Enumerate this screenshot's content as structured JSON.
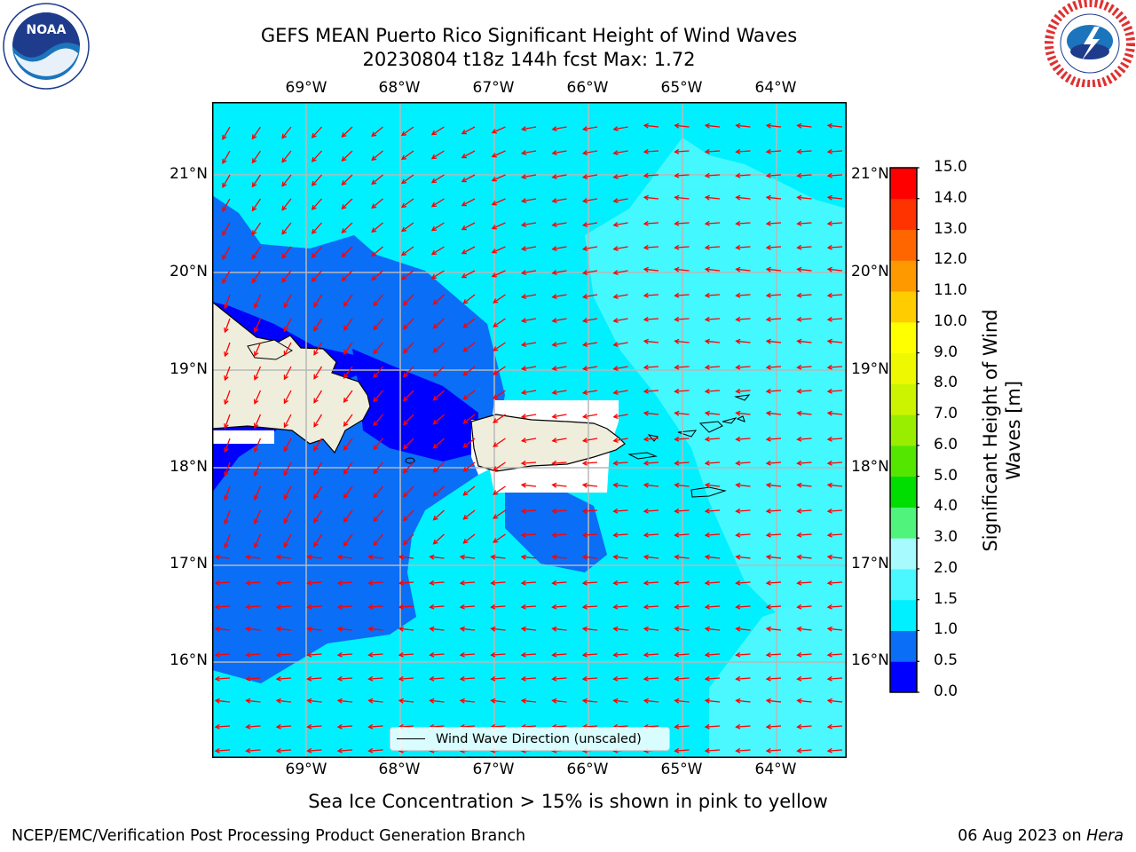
{
  "title_line1": "GEFS MEAN Puerto Rico Significant Height of Wind Waves",
  "title_line2": "20230804 t18z 144h fcst   Max: 1.72",
  "lon_labels": [
    "69°W",
    "68°W",
    "67°W",
    "66°W",
    "65°W",
    "64°W"
  ],
  "lat_labels": [
    "21°N",
    "20°N",
    "19°N",
    "18°N",
    "17°N",
    "16°N"
  ],
  "colorbar": {
    "label_line1": "Significant Height of Wind",
    "label_line2": "Waves [m]",
    "ticks": [
      "0.0",
      "0.5",
      "1.0",
      "1.5",
      "2.0",
      "3.0",
      "4.0",
      "5.0",
      "6.0",
      "7.0",
      "8.0",
      "9.0",
      "10.0",
      "11.0",
      "12.0",
      "13.0",
      "14.0",
      "15.0"
    ],
    "colors": [
      "#0000ff",
      "#0a6ef7",
      "#00f0ff",
      "#4bf8ff",
      "#a7fbff",
      "#50f37c",
      "#00dd00",
      "#55e600",
      "#99ee00",
      "#ccf400",
      "#eef800",
      "#ffff00",
      "#ffcc00",
      "#ff9900",
      "#ff6600",
      "#ff3300",
      "#ff0000"
    ]
  },
  "legend_text": "Wind Wave Direction (unscaled)",
  "sea_ice_note": "Sea Ice Concentration > 15% is shown in pink to yellow",
  "footer_left": "NCEP/EMC/Verification Post Processing Product Generation Branch",
  "footer_date": "06 Aug 2023 on ",
  "footer_machine": "Hera",
  "logos": {
    "left": "noaa-logo",
    "right": "nws-logo",
    "noaa_text": "NOAA"
  },
  "arrow_color": "#ff0000"
}
